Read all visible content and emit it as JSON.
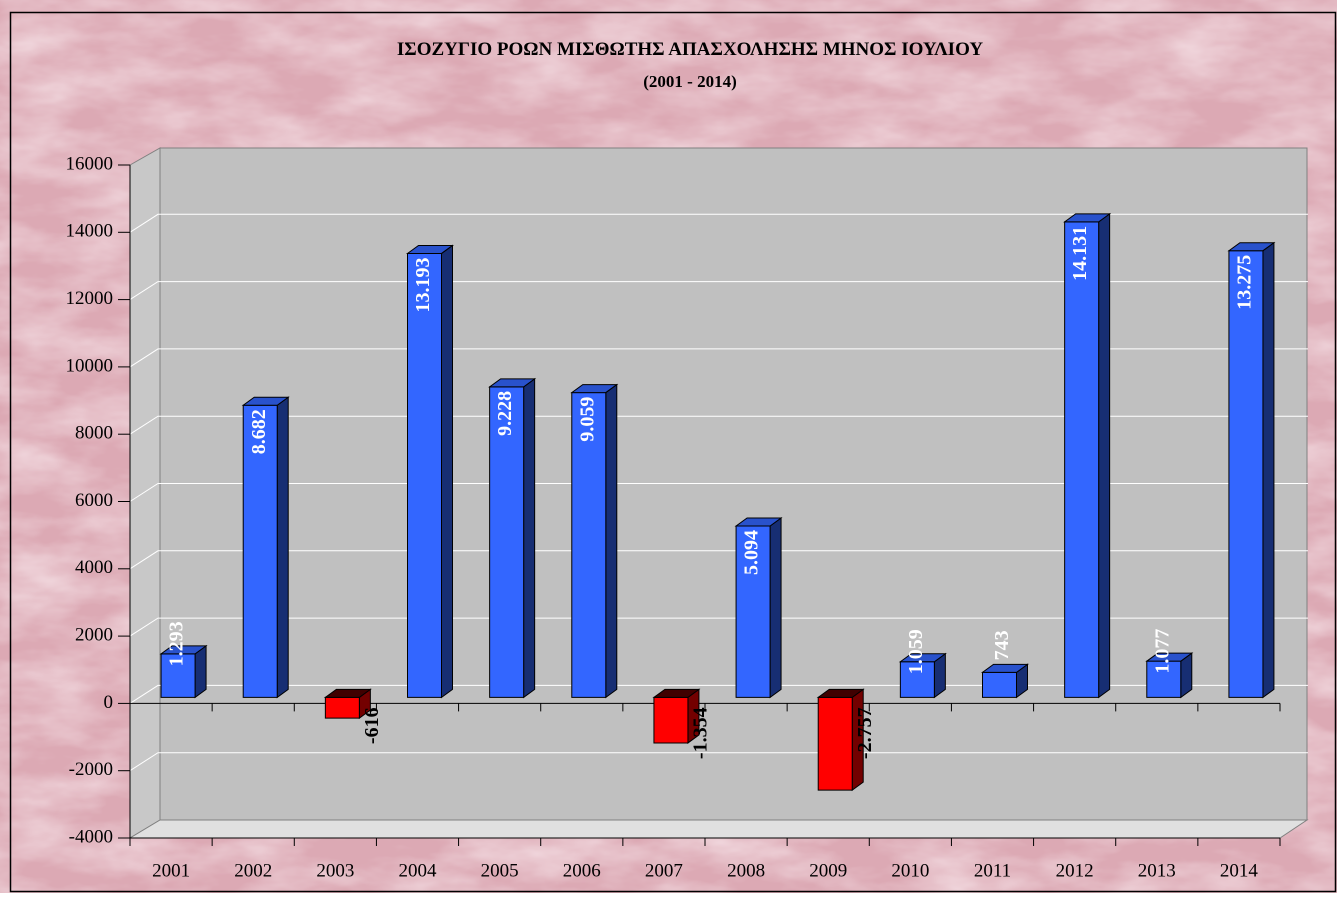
{
  "chart_data": {
    "type": "bar3d",
    "title": "ΙΣΟΖΥΓΙΟ ΡΟΩΝ ΜΙΣΘΩΤΗΣ ΑΠΑΣΧΟΛΗΣΗΣ ΜΗΝΟΣ  ΙΟΥΛΙΟΥ",
    "subtitle": "(2001 - 2014)",
    "categories": [
      "2001",
      "2002",
      "2003",
      "2004",
      "2005",
      "2006",
      "2007",
      "2008",
      "2009",
      "2010",
      "2011",
      "2012",
      "2013",
      "2014"
    ],
    "values": [
      1293,
      8682,
      -616,
      13193,
      9228,
      9059,
      -1354,
      5094,
      -2757,
      1059,
      743,
      14131,
      1077,
      13275
    ],
    "value_labels": [
      "1.293",
      "8.682",
      "-616",
      "13.193",
      "9.228",
      "9.059",
      "-1.354",
      "5.094",
      "-2.757",
      "1.059",
      "743",
      "14.131",
      "1.077",
      "13.275"
    ],
    "positive_color": "#3366ff",
    "negative_color": "#ff0000",
    "ylim": [
      -4000,
      16000
    ],
    "yticks": [
      -4000,
      -2000,
      0,
      2000,
      4000,
      6000,
      8000,
      10000,
      12000,
      14000,
      16000
    ],
    "grid": true
  }
}
